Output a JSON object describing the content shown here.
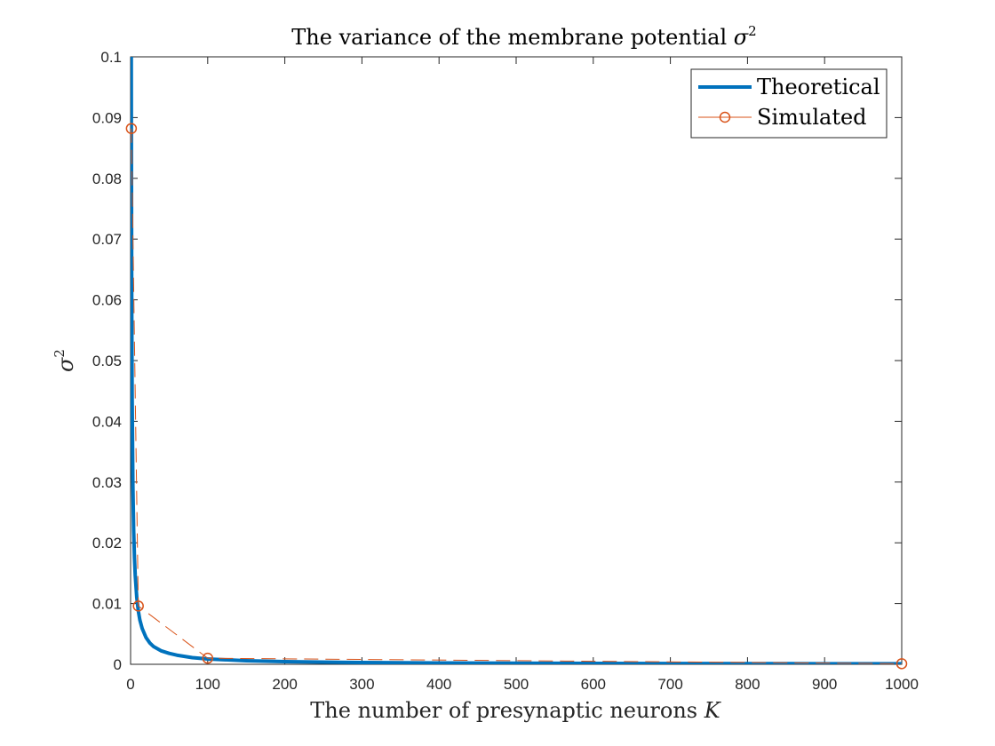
{
  "chart_data": {
    "type": "line",
    "title": "The variance of the membrane potential ",
    "title_symbol": "σ",
    "title_superscript": "2",
    "xlabel": "The number of presynaptic neurons ",
    "xlabel_symbol": "K",
    "ylabel_symbol": "σ",
    "ylabel_superscript": "2",
    "xlim": [
      0,
      1000
    ],
    "ylim": [
      0,
      0.1
    ],
    "xticks": [
      0,
      100,
      200,
      300,
      400,
      500,
      600,
      700,
      800,
      900,
      1000
    ],
    "xtick_labels": [
      "0",
      "100",
      "200",
      "300",
      "400",
      "500",
      "600",
      "700",
      "800",
      "900",
      "1000"
    ],
    "yticks": [
      0,
      0.01,
      0.02,
      0.03,
      0.04,
      0.05,
      0.06,
      0.07,
      0.08,
      0.09,
      0.1
    ],
    "ytick_labels": [
      "0",
      "0.01",
      "0.02",
      "0.03",
      "0.04",
      "0.05",
      "0.06",
      "0.07",
      "0.08",
      "0.09",
      "0.1"
    ],
    "grid": false,
    "legend_position": "top-right",
    "series": [
      {
        "name": "Theoretical",
        "style": "solid",
        "color": "#0072BD",
        "x": [
          0.88,
          1,
          1.5,
          2,
          3,
          4,
          5,
          6,
          8,
          10,
          12,
          15,
          20,
          25,
          30,
          40,
          50,
          60,
          80,
          100,
          150,
          200,
          300,
          400,
          500,
          600,
          700,
          800,
          900,
          1000
        ],
        "y": [
          0.1,
          0.088,
          0.0587,
          0.044,
          0.0293,
          0.022,
          0.0176,
          0.0147,
          0.011,
          0.0088,
          0.0073,
          0.0059,
          0.0044,
          0.0035,
          0.0029,
          0.0022,
          0.0018,
          0.0015,
          0.0011,
          0.00088,
          0.00059,
          0.00044,
          0.00029,
          0.00022,
          0.00018,
          0.00015,
          0.00013,
          0.00011,
          0.0001,
          9e-05
        ]
      },
      {
        "name": "Simulated",
        "style": "dashed",
        "marker": "circle",
        "color": "#D95319",
        "x": [
          1,
          10,
          100,
          1000
        ],
        "y": [
          0.0882,
          0.0096,
          0.001,
          0.0001
        ]
      }
    ]
  }
}
